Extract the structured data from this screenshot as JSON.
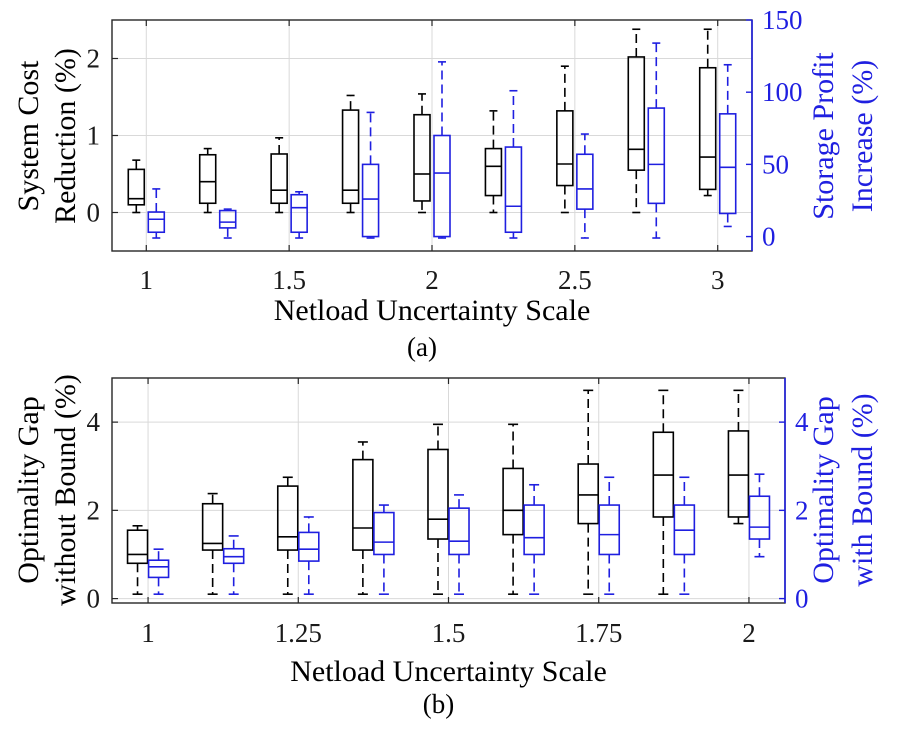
{
  "colors": {
    "left": "#000000",
    "right": "#1f1fe0",
    "grid": "#d9d9d9"
  },
  "chart_data": [
    {
      "type": "box",
      "caption": "(a)",
      "xlabel": "Netload Uncertainty Scale",
      "xlim": [
        0.88,
        3.12
      ],
      "xticks": [
        1,
        1.5,
        2,
        2.5,
        3
      ],
      "xtick_labels": [
        "1",
        "1.5",
        "2",
        "2.5",
        "3"
      ],
      "ylabel_left": [
        "System Cost",
        "Reduction (%)"
      ],
      "ylim_left": [
        -0.5,
        2.5
      ],
      "yticks_left": [
        0,
        1,
        2
      ],
      "ytick_labels_left": [
        "0",
        "1",
        "2"
      ],
      "ylabel_right": [
        "Storage Profit",
        "Increase (%)"
      ],
      "ylim_right": [
        -10,
        150
      ],
      "yticks_right": [
        0,
        50,
        100,
        150
      ],
      "ytick_labels_right": [
        "0",
        "50",
        "100",
        "150"
      ],
      "categories": [
        1,
        1.25,
        1.5,
        1.75,
        2,
        2.25,
        2.5,
        2.75,
        3
      ],
      "series": [
        {
          "name": "System Cost Reduction (%)",
          "axis": "left",
          "offset": -0.035,
          "boxes": [
            {
              "whislo": 0.0,
              "q1": 0.1,
              "med": 0.18,
              "q3": 0.56,
              "whishi": 0.68
            },
            {
              "whislo": 0.0,
              "q1": 0.12,
              "med": 0.4,
              "q3": 0.75,
              "whishi": 0.83
            },
            {
              "whislo": 0.0,
              "q1": 0.12,
              "med": 0.29,
              "q3": 0.76,
              "whishi": 0.97
            },
            {
              "whislo": 0.0,
              "q1": 0.12,
              "med": 0.29,
              "q3": 1.33,
              "whishi": 1.52
            },
            {
              "whislo": 0.0,
              "q1": 0.15,
              "med": 0.5,
              "q3": 1.27,
              "whishi": 1.54
            },
            {
              "whislo": 0.0,
              "q1": 0.22,
              "med": 0.6,
              "q3": 0.83,
              "whishi": 1.32
            },
            {
              "whislo": 0.0,
              "q1": 0.35,
              "med": 0.63,
              "q3": 1.32,
              "whishi": 1.9
            },
            {
              "whislo": 0.0,
              "q1": 0.55,
              "med": 0.82,
              "q3": 2.02,
              "whishi": 2.38
            },
            {
              "whislo": 0.22,
              "q1": 0.3,
              "med": 0.72,
              "q3": 1.88,
              "whishi": 2.38
            }
          ]
        },
        {
          "name": "Storage Profit Increase (%)",
          "axis": "right",
          "offset": 0.035,
          "boxes": [
            {
              "whislo": -1,
              "q1": 3,
              "med": 12,
              "q3": 17,
              "whishi": 33
            },
            {
              "whislo": -1,
              "q1": 6,
              "med": 10,
              "q3": 18,
              "whishi": 19
            },
            {
              "whislo": -1,
              "q1": 3,
              "med": 20,
              "q3": 29,
              "whishi": 31
            },
            {
              "whislo": -1,
              "q1": 0,
              "med": 26,
              "q3": 50,
              "whishi": 86
            },
            {
              "whislo": -1,
              "q1": 0,
              "med": 44,
              "q3": 70,
              "whishi": 121
            },
            {
              "whislo": -1,
              "q1": 3,
              "med": 21,
              "q3": 62,
              "whishi": 101
            },
            {
              "whislo": -1,
              "q1": 19,
              "med": 33,
              "q3": 57,
              "whishi": 71
            },
            {
              "whislo": -1,
              "q1": 23,
              "med": 50,
              "q3": 89,
              "whishi": 134
            },
            {
              "whislo": 7,
              "q1": 16,
              "med": 48,
              "q3": 85,
              "whishi": 119
            }
          ]
        }
      ]
    },
    {
      "type": "box",
      "caption": "(b)",
      "xlabel": "Netload Uncertainty Scale",
      "xlim": [
        0.94,
        2.06
      ],
      "xticks": [
        1,
        1.25,
        1.5,
        1.75,
        2
      ],
      "xtick_labels": [
        "1",
        "1.25",
        "1.5",
        "1.75",
        "2"
      ],
      "ylabel_left": [
        "Optimality Gap",
        "without Bound (%)"
      ],
      "ylim_left": [
        -0.1,
        5
      ],
      "yticks_left": [
        0,
        2,
        4
      ],
      "ytick_labels_left": [
        "0",
        "2",
        "4"
      ],
      "ylabel_right": [
        "Optimality Gap",
        "with Bound (%)"
      ],
      "ylim_right": [
        -0.1,
        5
      ],
      "yticks_right": [
        0,
        2,
        4
      ],
      "ytick_labels_right": [
        "0",
        "2",
        "4"
      ],
      "categories": [
        1,
        1.125,
        1.25,
        1.375,
        1.5,
        1.625,
        1.75,
        1.875,
        2
      ],
      "series": [
        {
          "name": "Optimality Gap without Bound (%)",
          "axis": "left",
          "offset": -0.0175,
          "boxes": [
            {
              "whislo": 0.1,
              "q1": 0.8,
              "med": 1.0,
              "q3": 1.55,
              "whishi": 1.65
            },
            {
              "whislo": 0.1,
              "q1": 1.1,
              "med": 1.25,
              "q3": 2.15,
              "whishi": 2.38
            },
            {
              "whislo": 0.1,
              "q1": 1.1,
              "med": 1.4,
              "q3": 2.55,
              "whishi": 2.75
            },
            {
              "whislo": 0.1,
              "q1": 1.1,
              "med": 1.6,
              "q3": 3.15,
              "whishi": 3.55
            },
            {
              "whislo": 0.1,
              "q1": 1.35,
              "med": 1.8,
              "q3": 3.38,
              "whishi": 3.95
            },
            {
              "whislo": 0.1,
              "q1": 1.45,
              "med": 2.0,
              "q3": 2.95,
              "whishi": 3.95
            },
            {
              "whislo": 0.1,
              "q1": 1.7,
              "med": 2.35,
              "q3": 3.05,
              "whishi": 4.72
            },
            {
              "whislo": 0.1,
              "q1": 1.85,
              "med": 2.8,
              "q3": 3.77,
              "whishi": 4.72
            },
            {
              "whislo": 1.7,
              "q1": 1.85,
              "med": 2.8,
              "q3": 3.8,
              "whishi": 4.72
            }
          ]
        },
        {
          "name": "Optimality Gap with Bound (%)",
          "axis": "right",
          "offset": 0.0175,
          "boxes": [
            {
              "whislo": 0.1,
              "q1": 0.48,
              "med": 0.72,
              "q3": 0.87,
              "whishi": 1.12
            },
            {
              "whislo": 0.1,
              "q1": 0.8,
              "med": 0.95,
              "q3": 1.13,
              "whishi": 1.42
            },
            {
              "whislo": 0.1,
              "q1": 0.85,
              "med": 1.12,
              "q3": 1.5,
              "whishi": 1.85
            },
            {
              "whislo": 0.1,
              "q1": 1.0,
              "med": 1.28,
              "q3": 1.95,
              "whishi": 2.12
            },
            {
              "whislo": 0.1,
              "q1": 1.0,
              "med": 1.3,
              "q3": 2.05,
              "whishi": 2.35
            },
            {
              "whislo": 0.1,
              "q1": 1.0,
              "med": 1.38,
              "q3": 2.12,
              "whishi": 2.58
            },
            {
              "whislo": 0.1,
              "q1": 1.0,
              "med": 1.45,
              "q3": 2.12,
              "whishi": 2.75
            },
            {
              "whislo": 0.1,
              "q1": 1.0,
              "med": 1.55,
              "q3": 2.12,
              "whishi": 2.75
            },
            {
              "whislo": 0.95,
              "q1": 1.35,
              "med": 1.62,
              "q3": 2.32,
              "whishi": 2.82
            }
          ]
        }
      ]
    }
  ]
}
